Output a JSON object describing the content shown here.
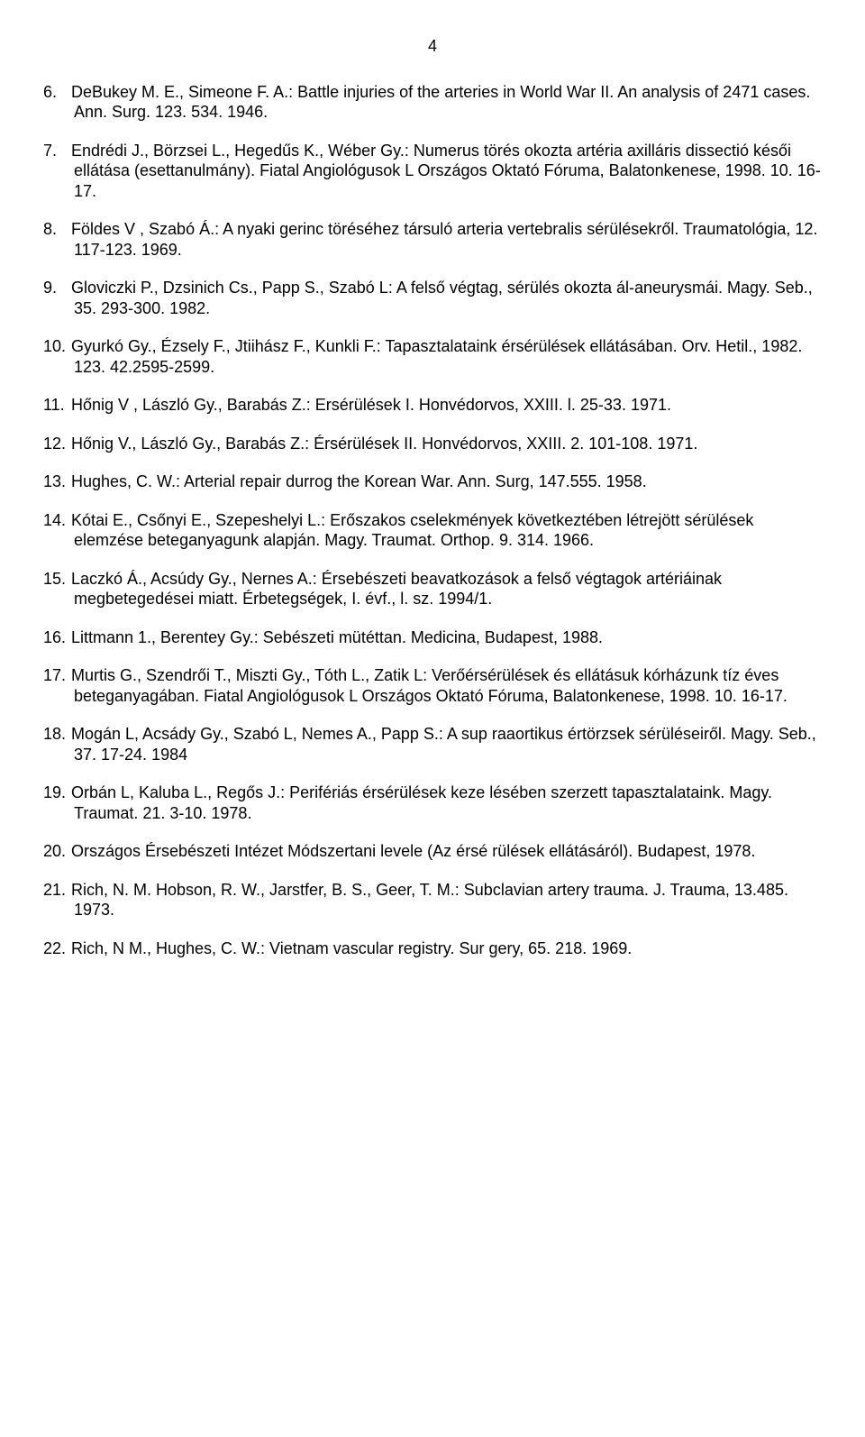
{
  "page_number": "4",
  "references": [
    {
      "n": "6.",
      "text": "DeBukey M. E., Simeone F. A.: Battle injuries of the arteries in World War II. An analysis of 2471 cases. Ann. Surg. 123. 534. 1946."
    },
    {
      "n": "7.",
      "text": "Endrédi J., Börzsei L., Hegedűs K., Wéber Gy.: Numerus törés okozta artéria axilláris dissectió késői ellátása (esettanulmány). Fiatal Angiológusok L Országos Oktató Fóruma, Balatonkenese, 1998. 10. 16-17."
    },
    {
      "n": "8.",
      "text": "Földes V , Szabó Á.: A nyaki gerinc töréséhez társuló arteria vertebralis sérülésekről. Traumatológia, 12. 117-123. 1969."
    },
    {
      "n": "9.",
      "text": "Gloviczki P., Dzsinich Cs., Papp S., Szabó L: A felső végtag, sérülés okozta ál-aneurysmái. Magy. Seb., 35. 293-300. 1982."
    },
    {
      "n": "10.",
      "text": "Gyurkó Gy., Ézsely F., Jtiihász F., Kunkli F.: Tapasztalataink érsérülések ellátásában. Orv. Hetil., 1982. 123. 42.2595-2599."
    },
    {
      "n": "11.",
      "text": "Hőnig V , László Gy., Barabás Z.: Ersérülések I. Honvédorvos, XXIII. l. 25-33. 1971."
    },
    {
      "n": "12.",
      "text": "Hőnig V., László Gy., Barabás Z.: Érsérülések II. Honvédorvos, XXIII. 2. 101-108. 1971."
    },
    {
      "n": "13.",
      "text": "Hughes, C. W.: Arterial repair durrog the Korean War. Ann. Surg, 147.555. 1958."
    },
    {
      "n": "14.",
      "text": "Kótai E., Csőnyi E., Szepeshelyi L.: Erőszakos cselekmények következtében létrejött sérülések elemzése beteganyagunk alapján. Magy. Traumat. Orthop. 9. 314. 1966."
    },
    {
      "n": "15.",
      "text": "Laczkó Á., Acsúdy Gy., Nernes A.: Érsebészeti beavatkozások a felső végtagok artériáinak megbetegedései miatt. Érbetegségek, I. évf., l. sz. 1994/1."
    },
    {
      "n": "16.",
      "text": "Littmann 1., Berentey Gy.: Sebészeti mütéttan. Medicina, Budapest, 1988."
    },
    {
      "n": "17.",
      "text": "Murtis G., Szendrői T., Miszti Gy., Tóth L., Zatik L: Verőérsérülések és ellátásuk kórházunk tíz éves beteganyagában. Fiatal Angiológusok L Országos Oktató Fóruma, Balatonkenese, 1998. 10. 16-17."
    },
    {
      "n": "18.",
      "text": "Mogán L, Acsády Gy., Szabó L, Nemes A., Papp S.: A sup raaortikus értörzsek sérüléseiről. Magy. Seb., 37. 17-24. 1984"
    },
    {
      "n": "19.",
      "text": "Orbán L, Kaluba L., Regős J.: Perifériás érsérülések keze lésében szerzett tapasztalataink. Magy. Traumat. 21. 3-10. 1978."
    },
    {
      "n": "20.",
      "text": "Országos Érsebészeti Intézet Módszertani levele (Az érsé rülések ellátásáról). Budapest, 1978."
    },
    {
      "n": "21.",
      "text": "Rich, N. M. Hobson, R. W., Jarstfer, B. S., Geer, T. M.: Subclavian artery trauma. J. Trauma, 13.485. 1973."
    },
    {
      "n": "22.",
      "text": "Rich, N M., Hughes, C. W.: Vietnam vascular registry. Sur gery, 65. 218. 1969."
    }
  ]
}
